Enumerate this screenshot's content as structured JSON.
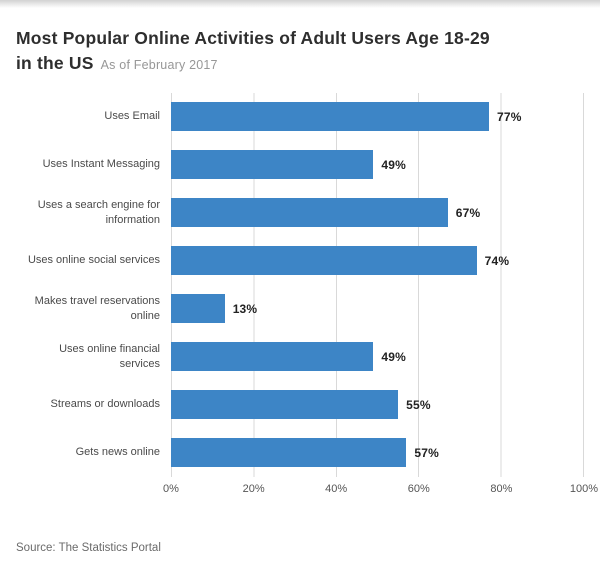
{
  "header": {
    "title_line1": "Most Popular Online Activities of Adult Users Age 18-29",
    "title_line2": "in the US",
    "subtitle": "As of February 2017"
  },
  "footer": {
    "source": "Source: The Statistics Portal"
  },
  "chart_data": {
    "type": "bar",
    "orientation": "horizontal",
    "title": "Most Popular Online Activities of Adult Users Age 18-29 in the US",
    "subtitle": "As of February 2017",
    "categories": [
      "Uses Email",
      "Uses Instant Messaging",
      "Uses a search engine for information",
      "Uses online social services",
      "Makes travel reservations online",
      "Uses online financial services",
      "Streams or downloads",
      "Gets news online"
    ],
    "values": [
      77,
      49,
      67,
      74,
      13,
      49,
      55,
      57
    ],
    "value_labels": [
      "77%",
      "49%",
      "67%",
      "74%",
      "13%",
      "49%",
      "55%",
      "57%"
    ],
    "x_ticks": [
      "0%",
      "20%",
      "40%",
      "60%",
      "80%",
      "100%"
    ],
    "xlim": [
      0,
      100
    ],
    "xlabel": "",
    "ylabel": "",
    "bar_color": "#3d85c6",
    "grid": true,
    "legend": "none"
  }
}
